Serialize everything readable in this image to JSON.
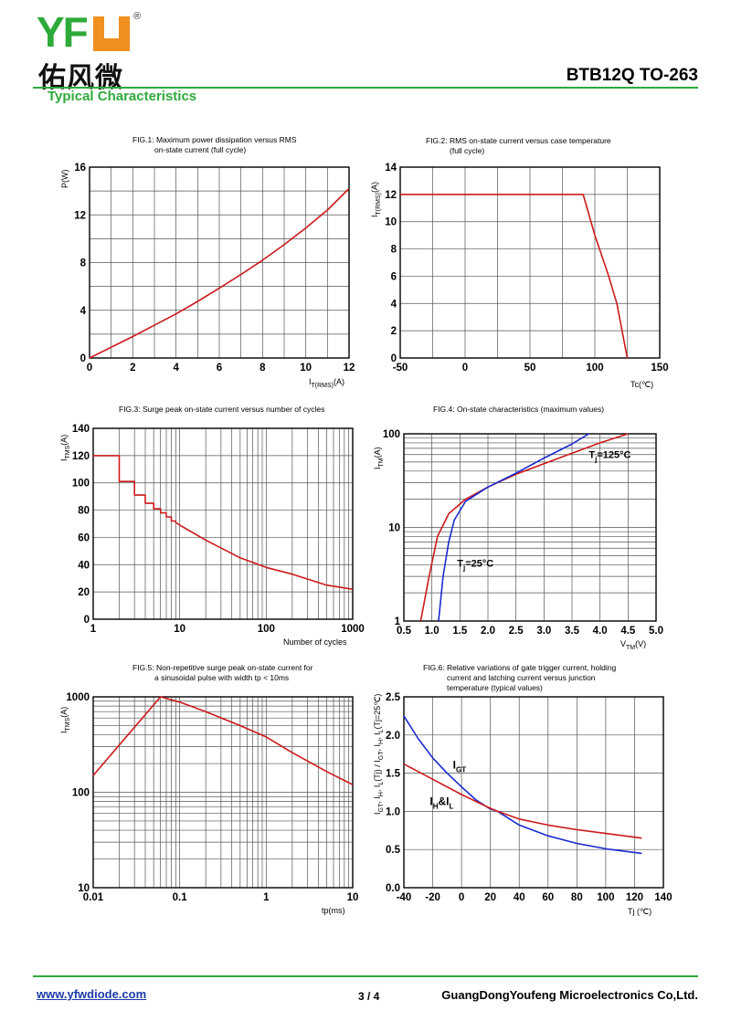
{
  "header": {
    "logo_latin": "YFW",
    "logo_registered": "®",
    "logo_chinese": "佑风微",
    "part_number": "BTB12Q TO-263",
    "section_title": "Typical Characteristics"
  },
  "footer": {
    "website": "www.yfwdiode.com",
    "page": "3 / 4",
    "company": "GuangDongYoufeng Microelectronics Co,Ltd."
  },
  "colors": {
    "brand_green": "#2eaa3a",
    "brand_orange": "#f0901e",
    "curve_red": "#cc1a1a",
    "curve_blue": "#1a2ad0"
  },
  "chart_data": [
    {
      "id": "fig1",
      "type": "line",
      "title": [
        "FIG.1: Maximum power dissipation versus RMS",
        "on-state current (full cycle)"
      ],
      "ylabel": "P(W)",
      "xlabel": "I T(RMS)(A)",
      "xlim": [
        0,
        12
      ],
      "ylim": [
        0,
        16
      ],
      "xticks": [
        0,
        2,
        4,
        6,
        8,
        10,
        12
      ],
      "yticks": [
        0,
        4,
        8,
        12,
        16
      ],
      "xgrid": [
        0,
        1,
        2,
        3,
        4,
        5,
        6,
        7,
        8,
        9,
        10,
        11,
        12
      ],
      "ygrid": [
        0,
        2,
        4,
        6,
        8,
        10,
        12,
        14,
        16
      ],
      "series": [
        {
          "color": "red",
          "x": [
            0,
            1,
            2,
            3,
            4,
            5,
            6,
            7,
            8,
            9,
            10,
            11,
            12
          ],
          "y": [
            0,
            0.9,
            1.8,
            2.75,
            3.7,
            4.75,
            5.85,
            7.0,
            8.2,
            9.5,
            10.9,
            12.4,
            14.2
          ]
        }
      ]
    },
    {
      "id": "fig2",
      "type": "line",
      "title": [
        "FIG.2: RMS on-state current versus case temperature",
        "(full cycle)"
      ],
      "ylabel": "I T(RMS)(A)",
      "xlabel": "Tc(℃)",
      "xlim": [
        -50,
        150
      ],
      "ylim": [
        0,
        14
      ],
      "xticks": [
        -50,
        0,
        50,
        100,
        150
      ],
      "yticks": [
        0,
        2,
        4,
        6,
        8,
        10,
        12,
        14
      ],
      "xgrid": [
        -50,
        -25,
        0,
        25,
        50,
        75,
        100,
        125,
        150
      ],
      "ygrid": [
        0,
        2,
        4,
        6,
        8,
        10,
        12,
        14
      ],
      "series": [
        {
          "color": "red",
          "x": [
            -50,
            91,
            100,
            110,
            117,
            125
          ],
          "y": [
            12,
            12,
            9,
            6.2,
            4,
            0
          ]
        }
      ]
    },
    {
      "id": "fig3",
      "type": "line",
      "title": [
        "FIG.3: Surge peak on-state current versus number of cycles"
      ],
      "ylabel": "I TMS(A)",
      "xlabel": "Number of cycles",
      "xscale": "log",
      "xlim": [
        1,
        1000
      ],
      "ylim": [
        0,
        140
      ],
      "xticks": [
        1,
        10,
        100,
        1000
      ],
      "yticks": [
        0,
        20,
        40,
        60,
        80,
        100,
        120,
        140
      ],
      "ygrid": [
        0,
        20,
        40,
        60,
        80,
        100,
        120,
        140
      ],
      "series": [
        {
          "color": "red",
          "x": [
            1,
            2,
            2,
            3,
            3,
            4,
            4,
            5,
            5,
            6,
            6,
            7,
            7,
            8,
            8,
            9,
            9,
            10,
            20,
            50,
            100,
            200,
            500,
            1000
          ],
          "y": [
            120,
            120,
            101,
            101,
            91,
            91,
            85,
            85,
            81,
            81,
            78,
            78,
            75,
            75,
            72,
            72,
            71,
            69,
            58,
            45,
            38,
            33,
            25,
            22
          ]
        }
      ]
    },
    {
      "id": "fig4",
      "type": "line",
      "title": [
        "FIG.4: On-state characteristics (maximum values)"
      ],
      "ylabel": "I TM(A)",
      "xlabel": "V TM(V)",
      "yscale": "log",
      "xlim": [
        0.5,
        5.0
      ],
      "ylim": [
        1,
        100
      ],
      "xticks": [
        0.5,
        1.0,
        1.5,
        2.0,
        2.5,
        3.0,
        3.5,
        4.0,
        4.5,
        5.0
      ],
      "xtick_labels": [
        "0.5",
        "1.0",
        "1.5",
        "2.0",
        "2.5",
        "3.0",
        "3.5",
        "4.0",
        "4.5",
        "5.0"
      ],
      "yticks": [
        1,
        10,
        100
      ],
      "xgrid": [
        0.5,
        1.0,
        1.5,
        2.0,
        2.5,
        3.0,
        3.5,
        4.0,
        4.5,
        5.0
      ],
      "series": [
        {
          "name": "Tj=125°C",
          "color": "red",
          "x": [
            0.8,
            0.95,
            1.1,
            1.3,
            1.6,
            2.0,
            2.5,
            3.0,
            3.5,
            4.0,
            4.5
          ],
          "y": [
            1,
            3,
            8,
            14,
            20,
            27,
            37,
            48,
            62,
            80,
            100
          ]
        },
        {
          "name": "Tj=25°C",
          "color": "blue",
          "x": [
            1.12,
            1.2,
            1.3,
            1.4,
            1.6,
            2.0,
            2.5,
            3.0,
            3.5,
            3.8
          ],
          "y": [
            1,
            3,
            7,
            12,
            19,
            27,
            38,
            55,
            78,
            100
          ]
        }
      ],
      "annotations": [
        {
          "text": "T",
          "sub": "j",
          "rest": "=125°C",
          "x": 3.8,
          "y": 55
        },
        {
          "text": "T",
          "sub": "j",
          "rest": "=25°C",
          "x": 1.45,
          "y": 3.8
        }
      ]
    },
    {
      "id": "fig5",
      "type": "line",
      "title": [
        "FIG.5: Non-repetitive surge peak on-state current for",
        "a sinusoidal pulse with width tp < 10ms"
      ],
      "ylabel": "I TMS(A)",
      "xlabel": "tp(ms)",
      "xscale": "log",
      "yscale": "log",
      "xlim": [
        0.01,
        10
      ],
      "ylim": [
        10,
        1000
      ],
      "xticks": [
        0.01,
        0.1,
        1,
        10
      ],
      "xtick_labels": [
        "0.01",
        "0.1",
        "1",
        "10"
      ],
      "yticks": [
        10,
        100,
        1000
      ],
      "series": [
        {
          "color": "red",
          "x": [
            0.01,
            0.06,
            0.1,
            0.2,
            0.5,
            1,
            2,
            5,
            10
          ],
          "y": [
            150,
            1000,
            880,
            700,
            500,
            380,
            260,
            165,
            120
          ]
        }
      ]
    },
    {
      "id": "fig6",
      "type": "line",
      "title": [
        "FIG.6: Relative variations of gate trigger current, holding",
        "current and latching current versus junction",
        "temperature (typical values)"
      ],
      "ylabel": "I GT, I H, I L(Tj) / I GT, I H, I L(Tj=25℃)",
      "xlabel": "Tj (℃)",
      "xlim": [
        -40,
        140
      ],
      "ylim": [
        0,
        2.5
      ],
      "xticks": [
        -40,
        -20,
        0,
        20,
        40,
        60,
        80,
        100,
        120,
        140
      ],
      "yticks": [
        0,
        0.5,
        1.0,
        1.5,
        2.0,
        2.5
      ],
      "ytick_labels": [
        "0.0",
        "0.5",
        "1.0",
        "1.5",
        "2.0",
        "2.5"
      ],
      "xgrid": [
        -40,
        -20,
        0,
        20,
        40,
        60,
        80,
        100,
        120,
        140
      ],
      "ygrid": [
        0,
        0.5,
        1.0,
        1.5,
        2.0,
        2.5
      ],
      "series": [
        {
          "name": "IGT",
          "color": "blue",
          "x": [
            -40,
            -30,
            -20,
            -10,
            0,
            10,
            20,
            25,
            40,
            60,
            80,
            100,
            125
          ],
          "y": [
            2.25,
            1.95,
            1.7,
            1.5,
            1.32,
            1.15,
            1.03,
            1.0,
            0.82,
            0.68,
            0.58,
            0.51,
            0.45
          ]
        },
        {
          "name": "IH&IL",
          "color": "red",
          "x": [
            -40,
            -20,
            0,
            20,
            25,
            40,
            60,
            80,
            100,
            125
          ],
          "y": [
            1.62,
            1.42,
            1.22,
            1.04,
            1.0,
            0.9,
            0.82,
            0.76,
            0.71,
            0.65
          ]
        }
      ],
      "annotations": [
        {
          "text": "I",
          "sub": "GT",
          "x": -6,
          "y": 1.56
        },
        {
          "text": "I",
          "sub": "H",
          "rest": "&I",
          "sub2": "L",
          "x": -22,
          "y": 1.08
        }
      ]
    }
  ]
}
